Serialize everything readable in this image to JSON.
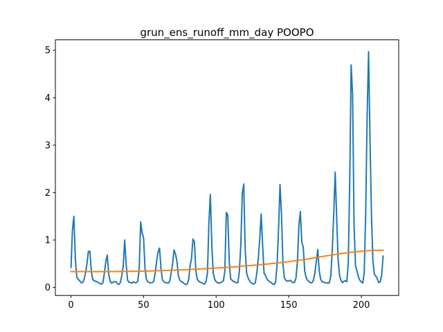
{
  "chart_data": {
    "type": "line",
    "title": "grun_ens_runoff_mm_day POOPO",
    "xlabel": "",
    "ylabel": "",
    "xlim": [
      -10.75,
      225.75
    ],
    "ylim": [
      -0.17,
      5.22
    ],
    "xticks": [
      0,
      50,
      100,
      150,
      200
    ],
    "yticks": [
      0,
      1,
      2,
      3,
      4,
      5
    ],
    "grid": false,
    "series": [
      {
        "color": "#1f77b4",
        "points": [
          [
            0,
            0.42
          ],
          [
            1,
            1.2
          ],
          [
            2,
            1.5
          ],
          [
            3,
            0.6
          ],
          [
            4,
            0.22
          ],
          [
            5,
            0.17
          ],
          [
            6,
            0.14
          ],
          [
            7,
            0.1
          ],
          [
            8,
            0.1
          ],
          [
            9,
            0.16
          ],
          [
            10,
            0.3
          ],
          [
            11,
            0.5
          ],
          [
            12,
            0.76
          ],
          [
            13,
            0.76
          ],
          [
            14,
            0.35
          ],
          [
            15,
            0.16
          ],
          [
            16,
            0.14
          ],
          [
            17,
            0.13
          ],
          [
            18,
            0.12
          ],
          [
            19,
            0.1
          ],
          [
            20,
            0.08
          ],
          [
            21,
            0.07
          ],
          [
            22,
            0.1
          ],
          [
            23,
            0.3
          ],
          [
            24,
            0.55
          ],
          [
            25,
            0.68
          ],
          [
            26,
            0.28
          ],
          [
            27,
            0.13
          ],
          [
            28,
            0.09
          ],
          [
            29,
            0.11
          ],
          [
            30,
            0.12
          ],
          [
            31,
            0.12
          ],
          [
            32,
            0.08
          ],
          [
            33,
            0.06
          ],
          [
            34,
            0.1
          ],
          [
            35,
            0.25
          ],
          [
            36,
            0.45
          ],
          [
            37,
            1.0
          ],
          [
            38,
            0.5
          ],
          [
            39,
            0.15
          ],
          [
            40,
            0.11
          ],
          [
            41,
            0.1
          ],
          [
            42,
            0.09
          ],
          [
            43,
            0.12
          ],
          [
            44,
            0.1
          ],
          [
            45,
            0.1
          ],
          [
            46,
            0.13
          ],
          [
            47,
            0.4
          ],
          [
            48,
            1.38
          ],
          [
            49,
            1.15
          ],
          [
            50,
            1.05
          ],
          [
            51,
            0.4
          ],
          [
            52,
            0.17
          ],
          [
            53,
            0.12
          ],
          [
            54,
            0.1
          ],
          [
            55,
            0.1
          ],
          [
            56,
            0.1
          ],
          [
            57,
            0.13
          ],
          [
            58,
            0.3
          ],
          [
            59,
            0.55
          ],
          [
            60,
            0.75
          ],
          [
            61,
            0.83
          ],
          [
            62,
            0.4
          ],
          [
            63,
            0.16
          ],
          [
            64,
            0.12
          ],
          [
            65,
            0.1
          ],
          [
            66,
            0.1
          ],
          [
            67,
            0.09
          ],
          [
            68,
            0.13
          ],
          [
            69,
            0.3
          ],
          [
            70,
            0.5
          ],
          [
            71,
            0.79
          ],
          [
            72,
            0.7
          ],
          [
            73,
            0.55
          ],
          [
            74,
            0.25
          ],
          [
            75,
            0.15
          ],
          [
            76,
            0.12
          ],
          [
            77,
            0.11
          ],
          [
            78,
            0.08
          ],
          [
            79,
            0.06
          ],
          [
            80,
            0.07
          ],
          [
            81,
            0.15
          ],
          [
            82,
            0.45
          ],
          [
            83,
            0.6
          ],
          [
            84,
            1.02
          ],
          [
            85,
            0.97
          ],
          [
            86,
            0.35
          ],
          [
            87,
            0.17
          ],
          [
            88,
            0.13
          ],
          [
            89,
            0.11
          ],
          [
            90,
            0.1
          ],
          [
            91,
            0.08
          ],
          [
            92,
            0.07
          ],
          [
            93,
            0.12
          ],
          [
            94,
            0.3
          ],
          [
            95,
            1.35
          ],
          [
            96,
            1.96
          ],
          [
            97,
            0.9
          ],
          [
            98,
            0.3
          ],
          [
            99,
            0.17
          ],
          [
            100,
            0.12
          ],
          [
            101,
            0.1
          ],
          [
            102,
            0.09
          ],
          [
            103,
            0.1
          ],
          [
            104,
            0.12
          ],
          [
            105,
            0.14
          ],
          [
            106,
            0.35
          ],
          [
            107,
            1.58
          ],
          [
            108,
            1.53
          ],
          [
            109,
            0.55
          ],
          [
            110,
            0.18
          ],
          [
            111,
            0.15
          ],
          [
            112,
            0.13
          ],
          [
            113,
            0.11
          ],
          [
            114,
            0.1
          ],
          [
            115,
            0.1
          ],
          [
            116,
            0.35
          ],
          [
            117,
            0.9
          ],
          [
            118,
            1.98
          ],
          [
            119,
            2.18
          ],
          [
            120,
            0.8
          ],
          [
            121,
            0.3
          ],
          [
            122,
            0.2
          ],
          [
            123,
            0.14
          ],
          [
            124,
            0.1
          ],
          [
            125,
            0.08
          ],
          [
            126,
            0.07
          ],
          [
            127,
            0.1
          ],
          [
            128,
            0.3
          ],
          [
            129,
            0.6
          ],
          [
            130,
            1.0
          ],
          [
            131,
            1.55
          ],
          [
            132,
            0.9
          ],
          [
            133,
            0.3
          ],
          [
            134,
            0.25
          ],
          [
            135,
            0.18
          ],
          [
            136,
            0.14
          ],
          [
            137,
            0.12
          ],
          [
            138,
            0.1
          ],
          [
            139,
            0.07
          ],
          [
            140,
            0.06
          ],
          [
            141,
            0.12
          ],
          [
            142,
            0.5
          ],
          [
            143,
            1.25
          ],
          [
            144,
            2.17
          ],
          [
            145,
            1.55
          ],
          [
            146,
            0.5
          ],
          [
            147,
            0.2
          ],
          [
            148,
            0.15
          ],
          [
            149,
            0.13
          ],
          [
            150,
            0.14
          ],
          [
            151,
            0.15
          ],
          [
            152,
            0.12
          ],
          [
            153,
            0.1
          ],
          [
            154,
            0.11
          ],
          [
            155,
            0.2
          ],
          [
            156,
            0.55
          ],
          [
            157,
            1.3
          ],
          [
            158,
            1.6
          ],
          [
            159,
            0.95
          ],
          [
            160,
            0.85
          ],
          [
            161,
            0.35
          ],
          [
            162,
            0.2
          ],
          [
            163,
            0.15
          ],
          [
            164,
            0.12
          ],
          [
            165,
            0.1
          ],
          [
            166,
            0.1
          ],
          [
            167,
            0.15
          ],
          [
            168,
            0.3
          ],
          [
            169,
            0.55
          ],
          [
            170,
            0.8
          ],
          [
            171,
            0.35
          ],
          [
            172,
            0.17
          ],
          [
            173,
            0.12
          ],
          [
            174,
            0.11
          ],
          [
            175,
            0.1
          ],
          [
            176,
            0.1
          ],
          [
            177,
            0.09
          ],
          [
            178,
            0.1
          ],
          [
            179,
            0.25
          ],
          [
            180,
            0.8
          ],
          [
            181,
            1.55
          ],
          [
            182,
            2.43
          ],
          [
            183,
            1.5
          ],
          [
            184,
            0.6
          ],
          [
            185,
            0.25
          ],
          [
            186,
            0.15
          ],
          [
            187,
            0.1
          ],
          [
            188,
            0.13
          ],
          [
            189,
            0.14
          ],
          [
            190,
            0.12
          ],
          [
            191,
            0.5
          ],
          [
            192,
            2.2
          ],
          [
            193,
            4.69
          ],
          [
            194,
            4.05
          ],
          [
            195,
            1.3
          ],
          [
            196,
            0.45
          ],
          [
            197,
            0.35
          ],
          [
            198,
            0.22
          ],
          [
            199,
            0.15
          ],
          [
            200,
            0.12
          ],
          [
            201,
            0.09
          ],
          [
            202,
            0.3
          ],
          [
            203,
            1.55
          ],
          [
            204,
            3.6
          ],
          [
            205,
            4.97
          ],
          [
            206,
            3.1
          ],
          [
            207,
            1.5
          ],
          [
            208,
            0.55
          ],
          [
            209,
            0.28
          ],
          [
            210,
            0.24
          ],
          [
            211,
            0.18
          ],
          [
            212,
            0.1
          ],
          [
            213,
            0.12
          ],
          [
            214,
            0.25
          ],
          [
            215,
            0.66
          ]
        ]
      },
      {
        "color": "#ff7f0e",
        "points": [
          [
            0,
            0.335
          ],
          [
            10,
            0.334
          ],
          [
            20,
            0.333
          ],
          [
            30,
            0.335
          ],
          [
            40,
            0.338
          ],
          [
            50,
            0.343
          ],
          [
            60,
            0.352
          ],
          [
            70,
            0.362
          ],
          [
            80,
            0.375
          ],
          [
            90,
            0.39
          ],
          [
            100,
            0.408
          ],
          [
            110,
            0.428
          ],
          [
            120,
            0.452
          ],
          [
            130,
            0.478
          ],
          [
            140,
            0.508
          ],
          [
            150,
            0.543
          ],
          [
            160,
            0.585
          ],
          [
            170,
            0.635
          ],
          [
            180,
            0.685
          ],
          [
            190,
            0.73
          ],
          [
            200,
            0.762
          ],
          [
            205,
            0.775
          ],
          [
            210,
            0.782
          ],
          [
            215,
            0.785
          ]
        ]
      }
    ]
  }
}
